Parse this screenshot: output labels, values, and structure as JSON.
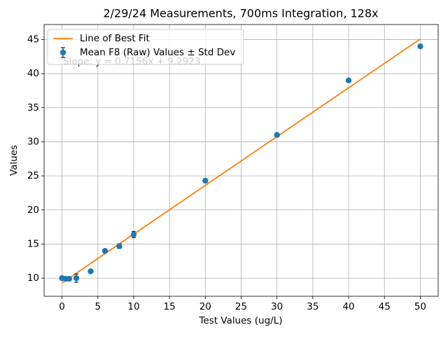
{
  "chart_data": {
    "type": "scatter",
    "title": "2/29/24 Measurements, 700ms Integration, 128x",
    "x_label": "Test Values (ug/L)",
    "y_label": "Values",
    "annotation": "Slope: y = 0.7156x + 9.2923",
    "xlim": [
      -2.5,
      52.5
    ],
    "ylim": [
      7.34,
      47.2
    ],
    "xticks": [
      0,
      5,
      10,
      15,
      20,
      25,
      30,
      35,
      40,
      45,
      50
    ],
    "yticks": [
      10,
      15,
      20,
      25,
      30,
      35,
      40,
      45
    ],
    "grid": true,
    "legend": "upper left",
    "series": [
      {
        "name": "Line of Best Fit",
        "type": "line",
        "color": "#ff7f0e",
        "x": [
          0,
          50
        ],
        "values": [
          9.2923,
          45.0723
        ]
      },
      {
        "name": "Mean F8 (Raw) Values ± Std Dev",
        "type": "errorbar",
        "color": "#1f77b4",
        "x": [
          0,
          0.5,
          1,
          2,
          4,
          6,
          8,
          10,
          20,
          30,
          40,
          50
        ],
        "values": [
          10.0,
          9.9,
          9.9,
          10.0,
          11.0,
          14.0,
          14.7,
          16.4,
          24.3,
          31.0,
          39.0,
          44.0
        ],
        "errors": [
          0.15,
          0.1,
          0.1,
          0.6,
          0.1,
          0.15,
          0.35,
          0.45,
          0.3,
          0.1,
          0.1,
          0.1
        ]
      }
    ]
  }
}
